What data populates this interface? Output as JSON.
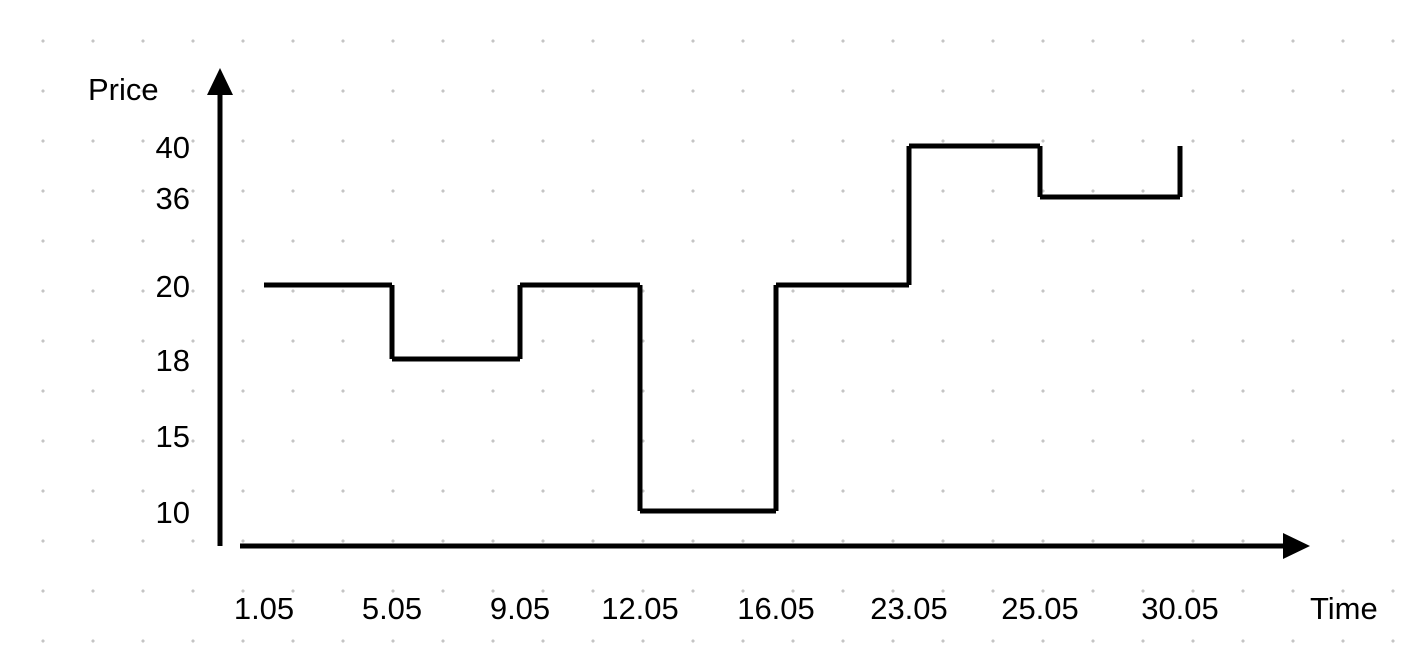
{
  "chart_data": {
    "type": "line",
    "step": true,
    "title": "",
    "xlabel": "Time",
    "ylabel": "Price",
    "x_ticks": [
      "1.05",
      "5.05",
      "9.05",
      "12.05",
      "16.05",
      "23.05",
      "25.05",
      "30.05"
    ],
    "y_ticks": [
      10,
      15,
      18,
      20,
      36,
      40
    ],
    "segments": [
      {
        "from": "1.05",
        "to": "5.05",
        "value": 20
      },
      {
        "from": "5.05",
        "to": "9.05",
        "value": 18
      },
      {
        "from": "9.05",
        "to": "12.05",
        "value": 20
      },
      {
        "from": "12.05",
        "to": "16.05",
        "value": 10
      },
      {
        "from": "16.05",
        "to": "23.05",
        "value": 20
      },
      {
        "from": "23.05",
        "to": "25.05",
        "value": 40
      },
      {
        "from": "25.05",
        "to": "30.05",
        "value": 36
      }
    ],
    "grid": "dots",
    "colors": {
      "line": "#000000",
      "axis": "#000000",
      "grid_dots": "#c4c4c4"
    }
  }
}
